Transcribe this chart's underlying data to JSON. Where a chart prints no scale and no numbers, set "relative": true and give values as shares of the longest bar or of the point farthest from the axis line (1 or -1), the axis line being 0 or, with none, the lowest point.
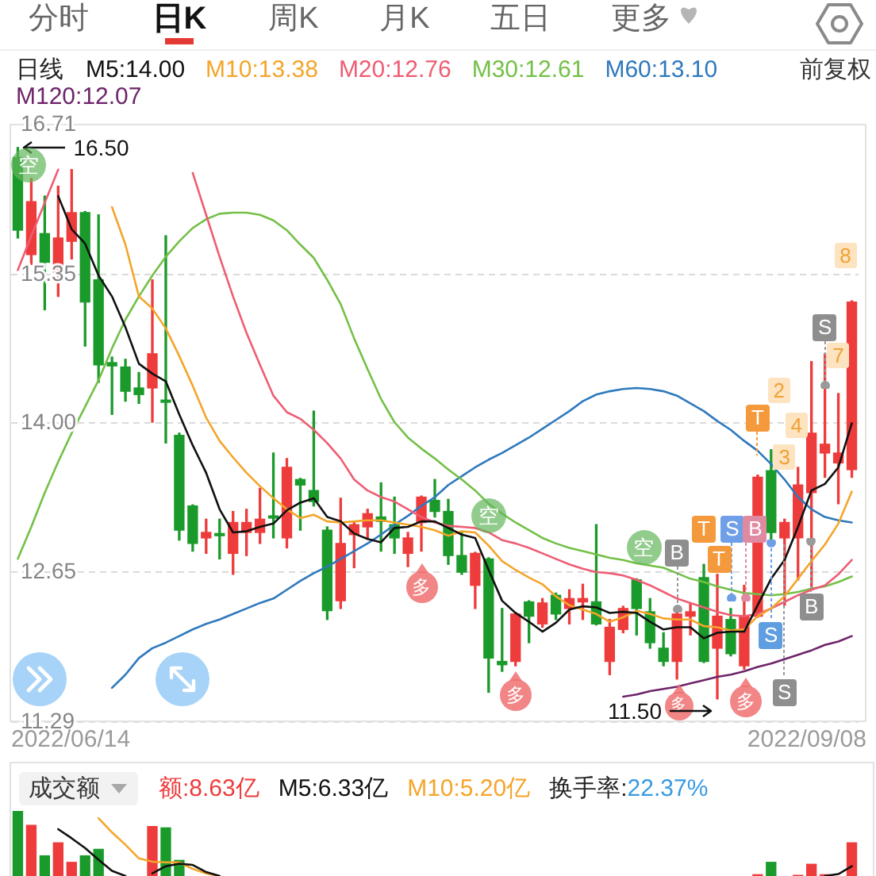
{
  "chart_data": [
    {
      "type": "candlestick",
      "title": "日线",
      "legend": "top",
      "grid": "y",
      "categories": [
        null,
        null,
        null,
        null,
        null,
        null,
        null,
        null,
        null,
        null,
        null,
        null,
        null,
        null,
        null,
        null,
        null,
        null,
        null,
        null,
        null,
        null,
        null,
        null,
        null,
        null,
        null,
        null,
        null,
        null,
        null,
        null,
        null,
        null,
        null,
        null,
        null,
        null,
        null,
        null,
        null,
        null,
        null,
        null,
        null,
        null,
        null,
        null,
        null,
        null,
        null,
        null,
        null,
        null,
        null,
        null,
        null,
        null,
        null,
        null,
        null,
        null,
        null
      ],
      "ylim": [
        11.29,
        16.71
      ],
      "yticks": [
        16.71,
        15.35,
        {
          "value": 14,
          "label": "14.00"
        },
        12.65,
        11.29
      ],
      "series": [
        {
          "type": "candlestick",
          "ohlc": [
            [
              16.41,
              16.5,
              15.68,
              15.75
            ],
            [
              15.53,
              16.22,
              15.44,
              16.01
            ],
            [
              15.72,
              16.06,
              15.03,
              15.46
            ],
            [
              15.37,
              16.15,
              15.15,
              15.68
            ],
            [
              15.65,
              16.3,
              15.49,
              15.91
            ],
            [
              15.91,
              15.92,
              14.7,
              15.1
            ],
            [
              15.3,
              15.89,
              14.37,
              14.53
            ],
            [
              14.55,
              14.6,
              14.08,
              14.52
            ],
            [
              14.51,
              14.58,
              14.2,
              14.29
            ],
            [
              14.32,
              14.46,
              14.18,
              14.26
            ],
            [
              14.32,
              15.3,
              14.01,
              14.63
            ],
            [
              14.21,
              15.7,
              13.82,
              14.19
            ],
            [
              13.89,
              13.91,
              12.94,
              13.03
            ],
            [
              13.25,
              13.26,
              12.84,
              12.91
            ],
            [
              12.96,
              13.13,
              12.82,
              13.01
            ],
            [
              13.0,
              13.13,
              12.77,
              12.98
            ],
            [
              12.82,
              13.2,
              12.63,
              13.1
            ],
            [
              13.01,
              13.22,
              12.8,
              13.1
            ],
            [
              13.01,
              13.41,
              12.91,
              13.13
            ],
            [
              13.16,
              13.73,
              12.96,
              13.14
            ],
            [
              12.96,
              13.68,
              12.87,
              13.6
            ],
            [
              13.49,
              13.5,
              13.03,
              13.44
            ],
            [
              13.39,
              14.11,
              13.25,
              13.29
            ],
            [
              13.03,
              13.06,
              12.22,
              12.3
            ],
            [
              12.39,
              13.32,
              12.32,
              12.91
            ],
            [
              12.99,
              13.1,
              12.69,
              13.08
            ],
            [
              13.06,
              13.22,
              12.96,
              13.18
            ],
            [
              13.15,
              13.46,
              12.84,
              13.11
            ],
            [
              13.08,
              13.33,
              12.82,
              12.96
            ],
            [
              12.82,
              13.01,
              12.7,
              12.96
            ],
            [
              13.1,
              13.34,
              12.84,
              13.33
            ],
            [
              13.3,
              13.49,
              13.15,
              13.2
            ],
            [
              13.2,
              13.31,
              12.72,
              12.8
            ],
            [
              12.8,
              13.01,
              12.63,
              12.65
            ],
            [
              12.53,
              12.83,
              12.32,
              12.82
            ],
            [
              12.77,
              12.78,
              11.56,
              11.87
            ],
            [
              11.84,
              12.32,
              11.75,
              11.81
            ],
            [
              11.84,
              12.28,
              11.8,
              12.27
            ],
            [
              12.38,
              12.39,
              12.01,
              12.25
            ],
            [
              12.18,
              12.41,
              12.15,
              12.37
            ],
            [
              12.44,
              12.46,
              12.22,
              12.27
            ],
            [
              12.32,
              12.49,
              12.18,
              12.41
            ],
            [
              12.38,
              12.54,
              12.22,
              12.41
            ],
            [
              12.38,
              13.08,
              12.17,
              12.18
            ],
            [
              11.84,
              12.22,
              11.72,
              12.15
            ],
            [
              12.13,
              12.34,
              12.1,
              12.32
            ],
            [
              12.58,
              12.59,
              12.08,
              12.32
            ],
            [
              12.29,
              12.41,
              11.96,
              12.01
            ],
            [
              11.96,
              12.1,
              11.8,
              11.84
            ],
            [
              11.84,
              12.32,
              11.68,
              12.27
            ],
            [
              12.25,
              12.37,
              12.08,
              12.29
            ],
            [
              12.6,
              12.72,
              11.83,
              11.84
            ],
            [
              11.96,
              12.63,
              11.5,
              12.25
            ],
            [
              12.22,
              12.32,
              11.89,
              11.91
            ],
            [
              11.8,
              12.53,
              11.77,
              12.25
            ],
            [
              12.25,
              13.53,
              12.24,
              13.51
            ],
            [
              13.57,
              13.76,
              12.91,
              13.01
            ],
            [
              12.96,
              13.13,
              12.35,
              13.1
            ],
            [
              12.96,
              13.6,
              12.58,
              13.44
            ],
            [
              13.37,
              14.56,
              12.49,
              13.91
            ],
            [
              13.73,
              14.63,
              13.51,
              13.81
            ],
            [
              13.64,
              14.27,
              13.27,
              13.73
            ],
            [
              13.58,
              15.11,
              13.51,
              15.1
            ]
          ],
          "colors": [
            "#1a9a2a",
            "#ee3b3b",
            "#1a9a2a",
            "#ee3b3b",
            "#ee3b3b",
            "#1a9a2a",
            "#1a9a2a",
            "#1a9a2a",
            "#1a9a2a",
            "#1a9a2a",
            "#ee3b3b",
            "#1a9a2a",
            "#1a9a2a",
            "#1a9a2a",
            "#ee3b3b",
            "#1a9a2a",
            "#ee3b3b",
            "#ee3b3b",
            "#ee3b3b",
            "#1a9a2a",
            "#ee3b3b",
            "#1a9a2a",
            "#1a9a2a",
            "#1a9a2a",
            "#ee3b3b",
            "#ee3b3b",
            "#ee3b3b",
            "#1a9a2a",
            "#1a9a2a",
            "#ee3b3b",
            "#ee3b3b",
            "#1a9a2a",
            "#1a9a2a",
            "#1a9a2a",
            "#ee3b3b",
            "#1a9a2a",
            "#1a9a2a",
            "#ee3b3b",
            "#1a9a2a",
            "#ee3b3b",
            "#1a9a2a",
            "#ee3b3b",
            "#ee3b3b",
            "#1a9a2a",
            "#ee3b3b",
            "#ee3b3b",
            "#1a9a2a",
            "#1a9a2a",
            "#1a9a2a",
            "#ee3b3b",
            "#ee3b3b",
            "#1a9a2a",
            "#ee3b3b",
            "#1a9a2a",
            "#ee3b3b",
            "#ee3b3b",
            "#1a9a2a",
            "#ee3b3b",
            "#ee3b3b",
            "#ee3b3b",
            "#ee3b3b",
            "#ee3b3b",
            "#ee3b3b"
          ]
        },
        {
          "type": "line",
          "name": "M5:14.00",
          "color": "#111111",
          "values": [
            null,
            null,
            null,
            16.06,
            15.76,
            15.63,
            15.34,
            15.15,
            14.87,
            14.54,
            14.45,
            14.38,
            14.08,
            13.8,
            13.55,
            13.22,
            13.01,
            13.02,
            13.06,
            13.09,
            13.21,
            13.28,
            13.32,
            13.15,
            13.11,
            13.0,
            12.95,
            12.92,
            13.05,
            13.06,
            13.11,
            13.11,
            13.05,
            12.99,
            12.96,
            12.67,
            12.39,
            12.28,
            12.2,
            12.11,
            12.19,
            12.31,
            12.34,
            12.33,
            12.28,
            12.29,
            12.28,
            12.2,
            12.13,
            12.15,
            12.15,
            12.05,
            12.1,
            12.11,
            12.11,
            12.35,
            12.59,
            12.76,
            13.06,
            13.39,
            13.45,
            13.6,
            14.0
          ]
        },
        {
          "type": "line",
          "name": "M10:13.38",
          "color": "#f4a52a",
          "values": [
            null,
            null,
            null,
            null,
            null,
            null,
            null,
            15.96,
            15.62,
            15.15,
            15.04,
            14.86,
            14.61,
            14.34,
            14.05,
            13.84,
            13.69,
            13.55,
            13.43,
            13.32,
            13.22,
            13.14,
            13.17,
            13.11,
            13.1,
            13.11,
            13.12,
            13.12,
            13.1,
            13.08,
            13.06,
            13.03,
            12.98,
            13.02,
            13.01,
            12.89,
            12.75,
            12.67,
            12.6,
            12.54,
            12.43,
            12.35,
            12.31,
            12.27,
            12.2,
            12.24,
            12.3,
            12.27,
            12.23,
            12.22,
            12.22,
            12.16,
            12.15,
            12.12,
            12.13,
            12.25,
            12.32,
            12.43,
            12.59,
            12.75,
            12.9,
            13.09,
            13.38
          ]
        },
        {
          "type": "line",
          "name": "M20:12.76",
          "color": "#ee5d73",
          "values": [
            15.39,
            15.7,
            16.0,
            16.3,
            null,
            null,
            null,
            null,
            null,
            null,
            null,
            null,
            null,
            16.27,
            15.89,
            15.51,
            15.15,
            14.82,
            14.53,
            14.25,
            14.1,
            14.04,
            13.94,
            13.82,
            13.68,
            13.49,
            13.39,
            13.33,
            13.29,
            13.22,
            13.15,
            13.1,
            13.07,
            13.06,
            13.05,
            13.01,
            12.94,
            12.91,
            12.87,
            12.82,
            12.77,
            12.72,
            12.68,
            12.65,
            12.64,
            12.62,
            12.58,
            12.53,
            12.47,
            12.41,
            12.37,
            12.33,
            12.29,
            12.26,
            12.25,
            12.27,
            12.32,
            12.38,
            12.44,
            12.49,
            12.53,
            12.63,
            12.76
          ]
        },
        {
          "type": "line",
          "name": "M30:12.61",
          "color": "#74c047",
          "values": [
            12.77,
            13.06,
            13.37,
            13.65,
            13.91,
            14.15,
            14.39,
            14.68,
            14.94,
            15.15,
            15.34,
            15.51,
            15.65,
            15.77,
            15.85,
            15.9,
            15.91,
            15.91,
            15.89,
            15.84,
            15.75,
            15.62,
            15.5,
            15.3,
            15.08,
            14.77,
            14.49,
            14.22,
            14.01,
            13.87,
            13.77,
            13.68,
            13.58,
            13.49,
            13.39,
            13.27,
            13.18,
            13.1,
            13.03,
            12.96,
            12.91,
            12.87,
            12.84,
            12.81,
            12.78,
            12.76,
            12.73,
            12.71,
            12.69,
            12.64,
            12.59,
            12.56,
            12.52,
            12.49,
            12.46,
            12.45,
            12.44,
            12.45,
            12.47,
            12.5,
            12.52,
            12.56,
            12.61
          ]
        },
        {
          "type": "line",
          "name": "M60:13.10",
          "color": "#2e79bd",
          "values": [
            null,
            null,
            null,
            null,
            null,
            null,
            null,
            11.6,
            11.72,
            11.87,
            11.96,
            12.01,
            12.07,
            12.13,
            12.18,
            12.22,
            12.27,
            12.32,
            12.37,
            12.41,
            12.49,
            12.57,
            12.64,
            12.7,
            12.77,
            12.84,
            12.91,
            12.99,
            13.08,
            13.16,
            13.25,
            13.33,
            13.44,
            13.52,
            13.6,
            13.67,
            13.73,
            13.8,
            13.87,
            13.95,
            14.03,
            14.11,
            14.2,
            14.26,
            14.29,
            14.31,
            14.32,
            14.31,
            14.29,
            14.25,
            14.18,
            14.11,
            14.02,
            13.94,
            13.84,
            13.75,
            13.63,
            13.49,
            13.33,
            13.22,
            13.15,
            13.12,
            13.1
          ]
        },
        {
          "type": "line",
          "name": "M120:12.07",
          "color": "#6d2469",
          "values": [
            null,
            null,
            null,
            null,
            null,
            null,
            null,
            null,
            null,
            null,
            null,
            null,
            null,
            null,
            null,
            null,
            null,
            null,
            null,
            null,
            null,
            null,
            null,
            null,
            null,
            null,
            null,
            null,
            null,
            null,
            null,
            null,
            null,
            null,
            null,
            null,
            null,
            null,
            null,
            null,
            null,
            null,
            null,
            null,
            null,
            11.52,
            11.54,
            11.57,
            11.59,
            11.61,
            11.64,
            11.67,
            11.7,
            11.72,
            11.75,
            11.79,
            11.82,
            11.86,
            11.9,
            11.94,
            11.99,
            12.02,
            12.07
          ]
        }
      ],
      "annotations": [
        "分时",
        "日K",
        "周K",
        "月K",
        "五日",
        "更多",
        "前复权",
        "16.50",
        "空",
        "多",
        "空",
        "多",
        "空",
        "B",
        "T",
        "T",
        "S",
        "B",
        "T",
        "2",
        "3",
        "S",
        "S",
        "4",
        "B",
        "S",
        "7",
        "8",
        "多",
        "11.50",
        "多",
        "2022/06/14",
        "2022/09/08"
      ]
    },
    {
      "type": "bar",
      "title": "成交额",
      "relative": true,
      "legend": "top",
      "categories": [
        null,
        null,
        null,
        null,
        null,
        null,
        null,
        null,
        null,
        null,
        null,
        null,
        null,
        null,
        null,
        null,
        null,
        null,
        null,
        null,
        null,
        null,
        null,
        null,
        null,
        null,
        null,
        null,
        null,
        null,
        null,
        null,
        null,
        null,
        null,
        null,
        null,
        null,
        null,
        null,
        null,
        null,
        null,
        null,
        null,
        null,
        null,
        null,
        null,
        null,
        null,
        null,
        null,
        null,
        null,
        null,
        null,
        null,
        null,
        null,
        null,
        null,
        null
      ],
      "series": [
        {
          "type": "bar",
          "name": "额:8.63亿",
          "color": "#ee3b3b",
          "colors": [
            "#1a9a2a",
            "#ee3b3b",
            "#1a9a2a",
            "#ee3b3b",
            "#ee3b3b",
            "#1a9a2a",
            "#1a9a2a",
            "#1a9a2a",
            "#1a9a2a",
            "#1a9a2a",
            "#ee3b3b",
            "#1a9a2a",
            "#1a9a2a",
            "#1a9a2a",
            "#ee3b3b",
            "#1a9a2a",
            "#ee3b3b",
            "#ee3b3b",
            "#ee3b3b",
            "#1a9a2a",
            "#ee3b3b",
            "#1a9a2a",
            "#1a9a2a",
            "#1a9a2a",
            "#ee3b3b",
            "#ee3b3b",
            "#ee3b3b",
            "#1a9a2a",
            "#1a9a2a",
            "#ee3b3b",
            "#ee3b3b",
            "#1a9a2a",
            "#1a9a2a",
            "#1a9a2a",
            "#ee3b3b",
            "#1a9a2a",
            "#1a9a2a",
            "#ee3b3b",
            "#1a9a2a",
            "#ee3b3b",
            "#1a9a2a",
            "#ee3b3b",
            "#ee3b3b",
            "#1a9a2a",
            "#ee3b3b",
            "#ee3b3b",
            "#1a9a2a",
            "#1a9a2a",
            "#1a9a2a",
            "#ee3b3b",
            "#ee3b3b",
            "#1a9a2a",
            "#ee3b3b",
            "#1a9a2a",
            "#ee3b3b",
            "#ee3b3b",
            "#1a9a2a",
            "#ee3b3b",
            "#ee3b3b",
            "#ee3b3b",
            "#ee3b3b",
            "#ee3b3b",
            "#ee3b3b"
          ],
          "values": [
            1.0,
            0.78,
            0.31,
            0.51,
            0.21,
            0.31,
            0.41,
            null,
            null,
            null,
            0.76,
            0.74,
            0.24,
            null,
            null,
            null,
            null,
            null,
            null,
            null,
            null,
            null,
            null,
            null,
            null,
            null,
            null,
            null,
            null,
            null,
            null,
            null,
            null,
            null,
            null,
            null,
            null,
            null,
            null,
            null,
            null,
            null,
            null,
            null,
            null,
            null,
            null,
            null,
            null,
            null,
            null,
            null,
            null,
            null,
            null,
            0.02,
            0.21,
            null,
            0.01,
            0.18,
            0.02,
            null,
            0.51
          ]
        },
        {
          "type": "line",
          "name": "M5:6.33亿",
          "color": "#111111",
          "values": [
            null,
            null,
            null,
            0.72,
            0.58,
            0.43,
            0.25,
            0.08,
            0.0,
            null,
            0.04,
            0.15,
            0.19,
            0.17,
            0.06,
            0.0,
            null,
            null,
            null,
            null,
            null,
            null,
            null,
            null,
            null,
            null,
            null,
            null,
            null,
            null,
            null,
            null,
            null,
            null,
            null,
            null,
            null,
            null,
            null,
            null,
            null,
            null,
            null,
            null,
            null,
            null,
            null,
            null,
            null,
            null,
            null,
            null,
            null,
            null,
            null,
            null,
            null,
            null,
            null,
            null,
            0.0,
            0.03,
            0.15
          ]
        },
        {
          "type": "line",
          "name": "M10:5.20亿",
          "color": "#f4a52a",
          "values": [
            null,
            null,
            null,
            null,
            null,
            null,
            0.89,
            0.67,
            0.48,
            0.27,
            0.22,
            0.21,
            0.21,
            0.11,
            0.04,
            0.0,
            null,
            null,
            null,
            null,
            null,
            null,
            null,
            null,
            null,
            null,
            null,
            null,
            null,
            null,
            null,
            null,
            null,
            null,
            null,
            null,
            null,
            null,
            null,
            null,
            null,
            null,
            null,
            null,
            null,
            null,
            null,
            null,
            null,
            null,
            null,
            null,
            null,
            null,
            null,
            null,
            null,
            null,
            null,
            null,
            null,
            null,
            null
          ]
        }
      ],
      "annotations": [
        "换手率:",
        "22.37%"
      ]
    }
  ]
}
